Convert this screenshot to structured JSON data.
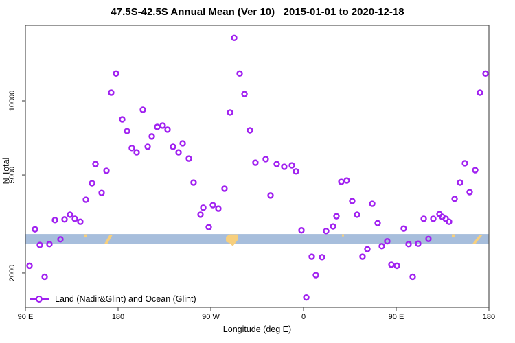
{
  "title": "47.5S-42.5S Annual Mean (Ver 10)   2015-01-01 to 2020-12-18",
  "axes": {
    "x_label": "Longitude (deg E)",
    "y_label": "N Total",
    "x_tick_labels": [
      "90 E",
      "180",
      "90 W",
      "0",
      "90 E",
      "180"
    ],
    "y_tick_labels": [
      "2000",
      "5000",
      "10000"
    ]
  },
  "legend": {
    "label": "Land (Nadir&Glint) and Ocean (Glint)"
  },
  "colors": {
    "marker": "#A020F0",
    "ocean_band": "#A7BEDC",
    "land_patch": "#F7CF7D",
    "axis": "#555555",
    "text": "#000000"
  },
  "chart_data": {
    "type": "scatter",
    "title": "47.5S-42.5S Annual Mean (Ver 10)   2015-01-01 to 2020-12-18",
    "xlabel": "Longitude (deg E)",
    "ylabel": "N Total",
    "x_axis": {
      "scale": "linear",
      "note": "longitude wraps eastward starting at 90E; 450 deg total span",
      "ticks_deg": [
        90,
        180,
        270,
        360,
        450,
        540
      ],
      "tick_labels": [
        "90 E",
        "180",
        "90 W",
        "0",
        "90 E",
        "180"
      ],
      "range_deg": [
        90,
        540
      ]
    },
    "y_axis": {
      "scale": "log",
      "ticks": [
        2000,
        5000,
        10000
      ],
      "range": [
        1430,
        20800
      ]
    },
    "legend_position": "bottom-left",
    "grid": false,
    "series": [
      {
        "name": "Land (Nadir&Glint) and Ocean (Glint)",
        "marker": "open-circle",
        "color": "#A020F0",
        "points_lon_n": [
          [
            94.0,
            2140
          ],
          [
            99.3,
            3010
          ],
          [
            104.0,
            2600
          ],
          [
            108.7,
            1930
          ],
          [
            113.3,
            2620
          ],
          [
            118.7,
            3280
          ],
          [
            124.0,
            2740
          ],
          [
            128.0,
            3300
          ],
          [
            133.3,
            3450
          ],
          [
            138.0,
            3320
          ],
          [
            143.3,
            3230
          ],
          [
            148.7,
            3970
          ],
          [
            154.7,
            4630
          ],
          [
            158.0,
            5540
          ],
          [
            164.0,
            4230
          ],
          [
            168.7,
            5200
          ],
          [
            173.3,
            10800
          ],
          [
            178.0,
            12900
          ],
          [
            184.0,
            8410
          ],
          [
            188.7,
            7540
          ],
          [
            193.3,
            6430
          ],
          [
            198.0,
            6180
          ],
          [
            204.0,
            9200
          ],
          [
            208.7,
            6510
          ],
          [
            212.7,
            7170
          ],
          [
            218.0,
            7840
          ],
          [
            223.3,
            7940
          ],
          [
            228.0,
            7640
          ],
          [
            233.3,
            6510
          ],
          [
            238.7,
            6180
          ],
          [
            242.7,
            6720
          ],
          [
            248.7,
            5830
          ],
          [
            253.3,
            4660
          ],
          [
            260.0,
            3450
          ],
          [
            262.7,
            3680
          ],
          [
            268.0,
            3070
          ],
          [
            272.0,
            3770
          ],
          [
            277.3,
            3650
          ],
          [
            283.3,
            4400
          ],
          [
            288.7,
            8970
          ],
          [
            292.7,
            18000
          ],
          [
            298.0,
            12900
          ],
          [
            302.7,
            10660
          ],
          [
            308.0,
            7590
          ],
          [
            313.3,
            5610
          ],
          [
            323.3,
            5800
          ],
          [
            328.0,
            4130
          ],
          [
            334.0,
            5540
          ],
          [
            341.3,
            5400
          ],
          [
            348.7,
            5470
          ],
          [
            352.7,
            5170
          ],
          [
            358.0,
            2980
          ],
          [
            362.7,
            1590
          ],
          [
            368.0,
            2330
          ],
          [
            372.0,
            1960
          ],
          [
            378.0,
            2320
          ],
          [
            382.0,
            2960
          ],
          [
            388.7,
            3090
          ],
          [
            392.0,
            3400
          ],
          [
            396.7,
            4690
          ],
          [
            402.0,
            4750
          ],
          [
            407.3,
            3920
          ],
          [
            412.0,
            3450
          ],
          [
            417.3,
            2330
          ],
          [
            422.0,
            2500
          ],
          [
            426.7,
            3820
          ],
          [
            432.0,
            3190
          ],
          [
            436.0,
            2570
          ],
          [
            441.3,
            2690
          ],
          [
            445.3,
            2160
          ],
          [
            450.7,
            2140
          ],
          [
            457.3,
            3030
          ],
          [
            462.0,
            2620
          ],
          [
            466.0,
            1930
          ],
          [
            471.3,
            2630
          ],
          [
            476.7,
            3320
          ],
          [
            481.3,
            2750
          ],
          [
            486.0,
            3320
          ],
          [
            492.0,
            3470
          ],
          [
            494.7,
            3380
          ],
          [
            498.0,
            3320
          ],
          [
            501.3,
            3230
          ],
          [
            506.7,
            4000
          ],
          [
            512.0,
            4660
          ],
          [
            516.7,
            5580
          ],
          [
            521.3,
            4260
          ],
          [
            526.7,
            5230
          ],
          [
            531.3,
            10800
          ],
          [
            536.7,
            12900
          ]
        ]
      }
    ],
    "ocean_land_band": {
      "description": "horizontal strip showing ocean (blue) and land (orange) along the 47.5S-42.5S latitude belt",
      "n_range": [
        2630,
        2880
      ],
      "land_segments": [
        {
          "lon": [
            146.7,
            150.0
          ],
          "shape": "dot"
        },
        {
          "lon": [
            166.7,
            174.7
          ],
          "shape": "streak"
        },
        {
          "lon": [
            284.7,
            296.0
          ],
          "shape": "blob"
        },
        {
          "lon": [
            397.3,
            399.3
          ],
          "shape": "speck"
        },
        {
          "lon": [
            504.0,
            507.3
          ],
          "shape": "dot"
        },
        {
          "lon": [
            524.0,
            534.0
          ],
          "shape": "streak"
        }
      ]
    }
  }
}
